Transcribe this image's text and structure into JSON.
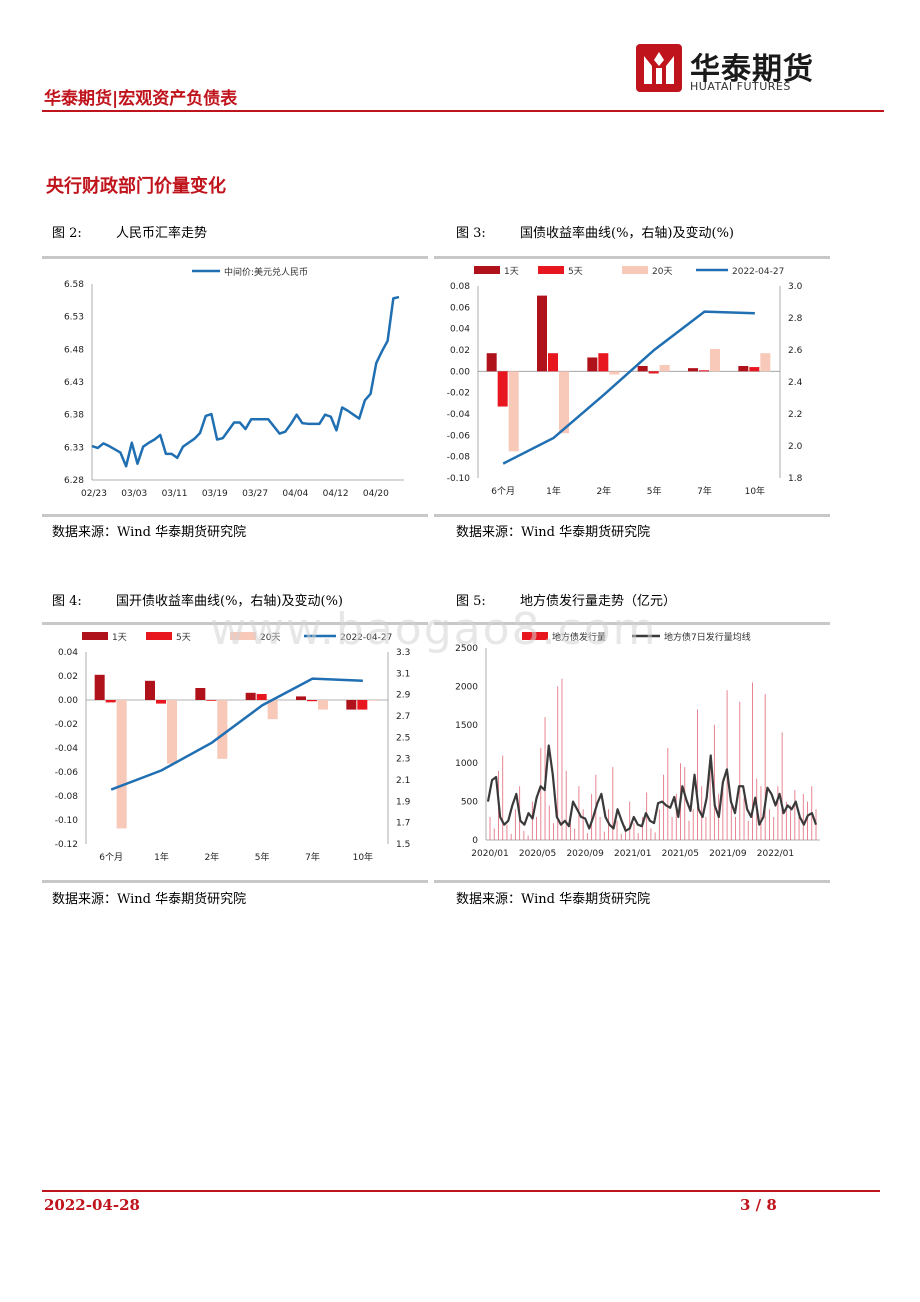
{
  "header": {
    "report_label": "华泰期货|宏观资产负债表",
    "logo_cn": "华泰期货",
    "logo_en": "HUATAI FUTURES"
  },
  "section_title": "央行财政部门价量变化",
  "figures": [
    {
      "num": "图 2:",
      "title": "人民币汇率走势",
      "source": "数据来源：Wind 华泰期货研究院"
    },
    {
      "num": "图 3:",
      "title": "国债收益率曲线(%，右轴)及变动(%)",
      "source": "数据来源：Wind 华泰期货研究院"
    },
    {
      "num": "图 4:",
      "title": "国开债收益率曲线(%，右轴)及变动(%)",
      "source": "数据来源：Wind 华泰期货研究院"
    },
    {
      "num": "图 5:",
      "title": "地方债发行量走势（亿元）",
      "source": "数据来源：Wind 华泰期货研究院"
    }
  ],
  "watermark": "www.baogao8.com",
  "footer": {
    "date": "2022-04-28",
    "page": "3 / 8"
  },
  "colors": {
    "brand_red": "#c0141d",
    "line_blue": "#1f6fb2",
    "bar_dark": "#b0121c",
    "bar_mid": "#e8161f",
    "bar_light": "#f8c8b8",
    "dark_line": "#3a3a3a"
  },
  "chart_data": [
    {
      "id": "fx",
      "type": "line",
      "title": "人民币汇率走势",
      "legend": [
        "中间价:美元兑人民币"
      ],
      "ylim": [
        6.28,
        6.58
      ],
      "yticks": [
        "6.58",
        "6.53",
        "6.48",
        "6.43",
        "6.38",
        "6.33",
        "6.28"
      ],
      "xticks": [
        "02/23",
        "03/03",
        "03/11",
        "03/19",
        "03/27",
        "04/04",
        "04/12",
        "04/20"
      ],
      "values": [
        6.332,
        6.329,
        6.336,
        6.332,
        6.327,
        6.322,
        6.301,
        6.337,
        6.305,
        6.331,
        6.337,
        6.342,
        6.349,
        6.32,
        6.32,
        6.314,
        6.331,
        6.337,
        6.343,
        6.352,
        6.378,
        6.381,
        6.342,
        6.344,
        6.356,
        6.368,
        6.368,
        6.358,
        6.373,
        6.373,
        6.373,
        6.373,
        6.362,
        6.351,
        6.354,
        6.366,
        6.38,
        6.367,
        6.366,
        6.366,
        6.366,
        6.38,
        6.377,
        6.356,
        6.391,
        6.386,
        6.38,
        6.374,
        6.402,
        6.412,
        6.459,
        6.477,
        6.493,
        6.558,
        6.56
      ]
    },
    {
      "id": "govbond",
      "type": "bar+line",
      "title": "国债收益率曲线(%，右轴)及变动(%)",
      "categories": [
        "6个月",
        "1年",
        "2年",
        "5年",
        "7年",
        "10年"
      ],
      "series": [
        {
          "name": "1天",
          "values": [
            0.017,
            0.071,
            0.013,
            0.005,
            0.003,
            0.005
          ]
        },
        {
          "name": "5天",
          "values": [
            -0.033,
            0.017,
            0.017,
            -0.002,
            0.001,
            0.004
          ]
        },
        {
          "name": "20天",
          "values": [
            -0.075,
            -0.058,
            -0.003,
            0.006,
            0.021,
            0.017
          ]
        }
      ],
      "line": {
        "name": "2022-04-27",
        "values": [
          1.89,
          2.05,
          2.32,
          2.6,
          2.84,
          2.83
        ]
      },
      "ylim_left": [
        -0.1,
        0.08
      ],
      "yticks_left": [
        "0.08",
        "0.06",
        "0.04",
        "0.02",
        "0.00",
        "-0.02",
        "-0.04",
        "-0.06",
        "-0.08",
        "-0.10"
      ],
      "ylim_right": [
        1.8,
        3.0
      ],
      "yticks_right": [
        "3.0",
        "2.8",
        "2.6",
        "2.4",
        "2.2",
        "2.0",
        "1.8"
      ]
    },
    {
      "id": "cdbbond",
      "type": "bar+line",
      "title": "国开债收益率曲线(%，右轴)及变动(%)",
      "categories": [
        "6个月",
        "1年",
        "2年",
        "5年",
        "7年",
        "10年"
      ],
      "series": [
        {
          "name": "1天",
          "values": [
            0.021,
            0.016,
            0.01,
            0.006,
            0.003,
            -0.008
          ]
        },
        {
          "name": "5天",
          "values": [
            -0.002,
            -0.003,
            0.0,
            0.005,
            -0.001,
            -0.008
          ]
        },
        {
          "name": "20天",
          "values": [
            -0.107,
            -0.053,
            -0.049,
            -0.016,
            -0.008,
            0.0
          ]
        }
      ],
      "line": {
        "name": "2022-04-27",
        "values": [
          2.01,
          2.19,
          2.45,
          2.8,
          3.05,
          3.03
        ]
      },
      "ylim_left": [
        -0.12,
        0.04
      ],
      "yticks_left": [
        "0.04",
        "0.02",
        "0.00",
        "-0.02",
        "-0.04",
        "-0.06",
        "-0.08",
        "-0.10",
        "-0.12"
      ],
      "ylim_right": [
        1.5,
        3.3
      ],
      "yticks_right": [
        "3.3",
        "3.1",
        "2.9",
        "2.7",
        "2.5",
        "2.3",
        "2.1",
        "1.9",
        "1.7",
        "1.5"
      ]
    },
    {
      "id": "localdebt",
      "type": "bar+line",
      "title": "地方债发行量走势（亿元）",
      "legend": [
        "地方债发行量",
        "地方债7日发行量均线"
      ],
      "ylim": [
        0,
        2500
      ],
      "yticks": [
        "2500",
        "2000",
        "1500",
        "1000",
        "500",
        "0"
      ],
      "xticks": [
        "2020/01",
        "2020/05",
        "2020/09",
        "2021/01",
        "2021/05",
        "2021/09",
        "2022/01"
      ],
      "bars_note": "daily issuance spikes",
      "bar_values": [
        300,
        150,
        900,
        1100,
        200,
        80,
        400,
        700,
        120,
        60,
        500,
        300,
        1200,
        1600,
        450,
        220,
        2000,
        2100,
        900,
        300,
        150,
        700,
        400,
        90,
        600,
        850,
        300,
        110,
        400,
        950,
        250,
        80,
        180,
        500,
        220,
        90,
        300,
        620,
        150,
        100,
        400,
        850,
        1200,
        300,
        600,
        1000,
        950,
        250,
        400,
        1700,
        700,
        300,
        1000,
        1500,
        600,
        800,
        1950,
        450,
        300,
        1800,
        550,
        250,
        2050,
        800,
        700,
        1900,
        400,
        300,
        700,
        1400,
        500,
        450,
        650,
        300,
        600,
        500,
        700,
        400
      ],
      "line_values": [
        500,
        780,
        820,
        300,
        200,
        250,
        450,
        600,
        250,
        200,
        350,
        280,
        550,
        700,
        650,
        1230,
        850,
        300,
        200,
        250,
        180,
        500,
        400,
        300,
        280,
        150,
        300,
        480,
        600,
        300,
        200,
        150,
        400,
        250,
        120,
        150,
        300,
        200,
        180,
        350,
        250,
        220,
        480,
        500,
        450,
        420,
        560,
        300,
        700,
        520,
        380,
        850,
        400,
        300,
        550,
        1100,
        450,
        300,
        750,
        920,
        500,
        350,
        700,
        700,
        400,
        300,
        550,
        200,
        300,
        680,
        600,
        450,
        600,
        350,
        450,
        400,
        500,
        300,
        200,
        320,
        350,
        200
      ]
    }
  ]
}
